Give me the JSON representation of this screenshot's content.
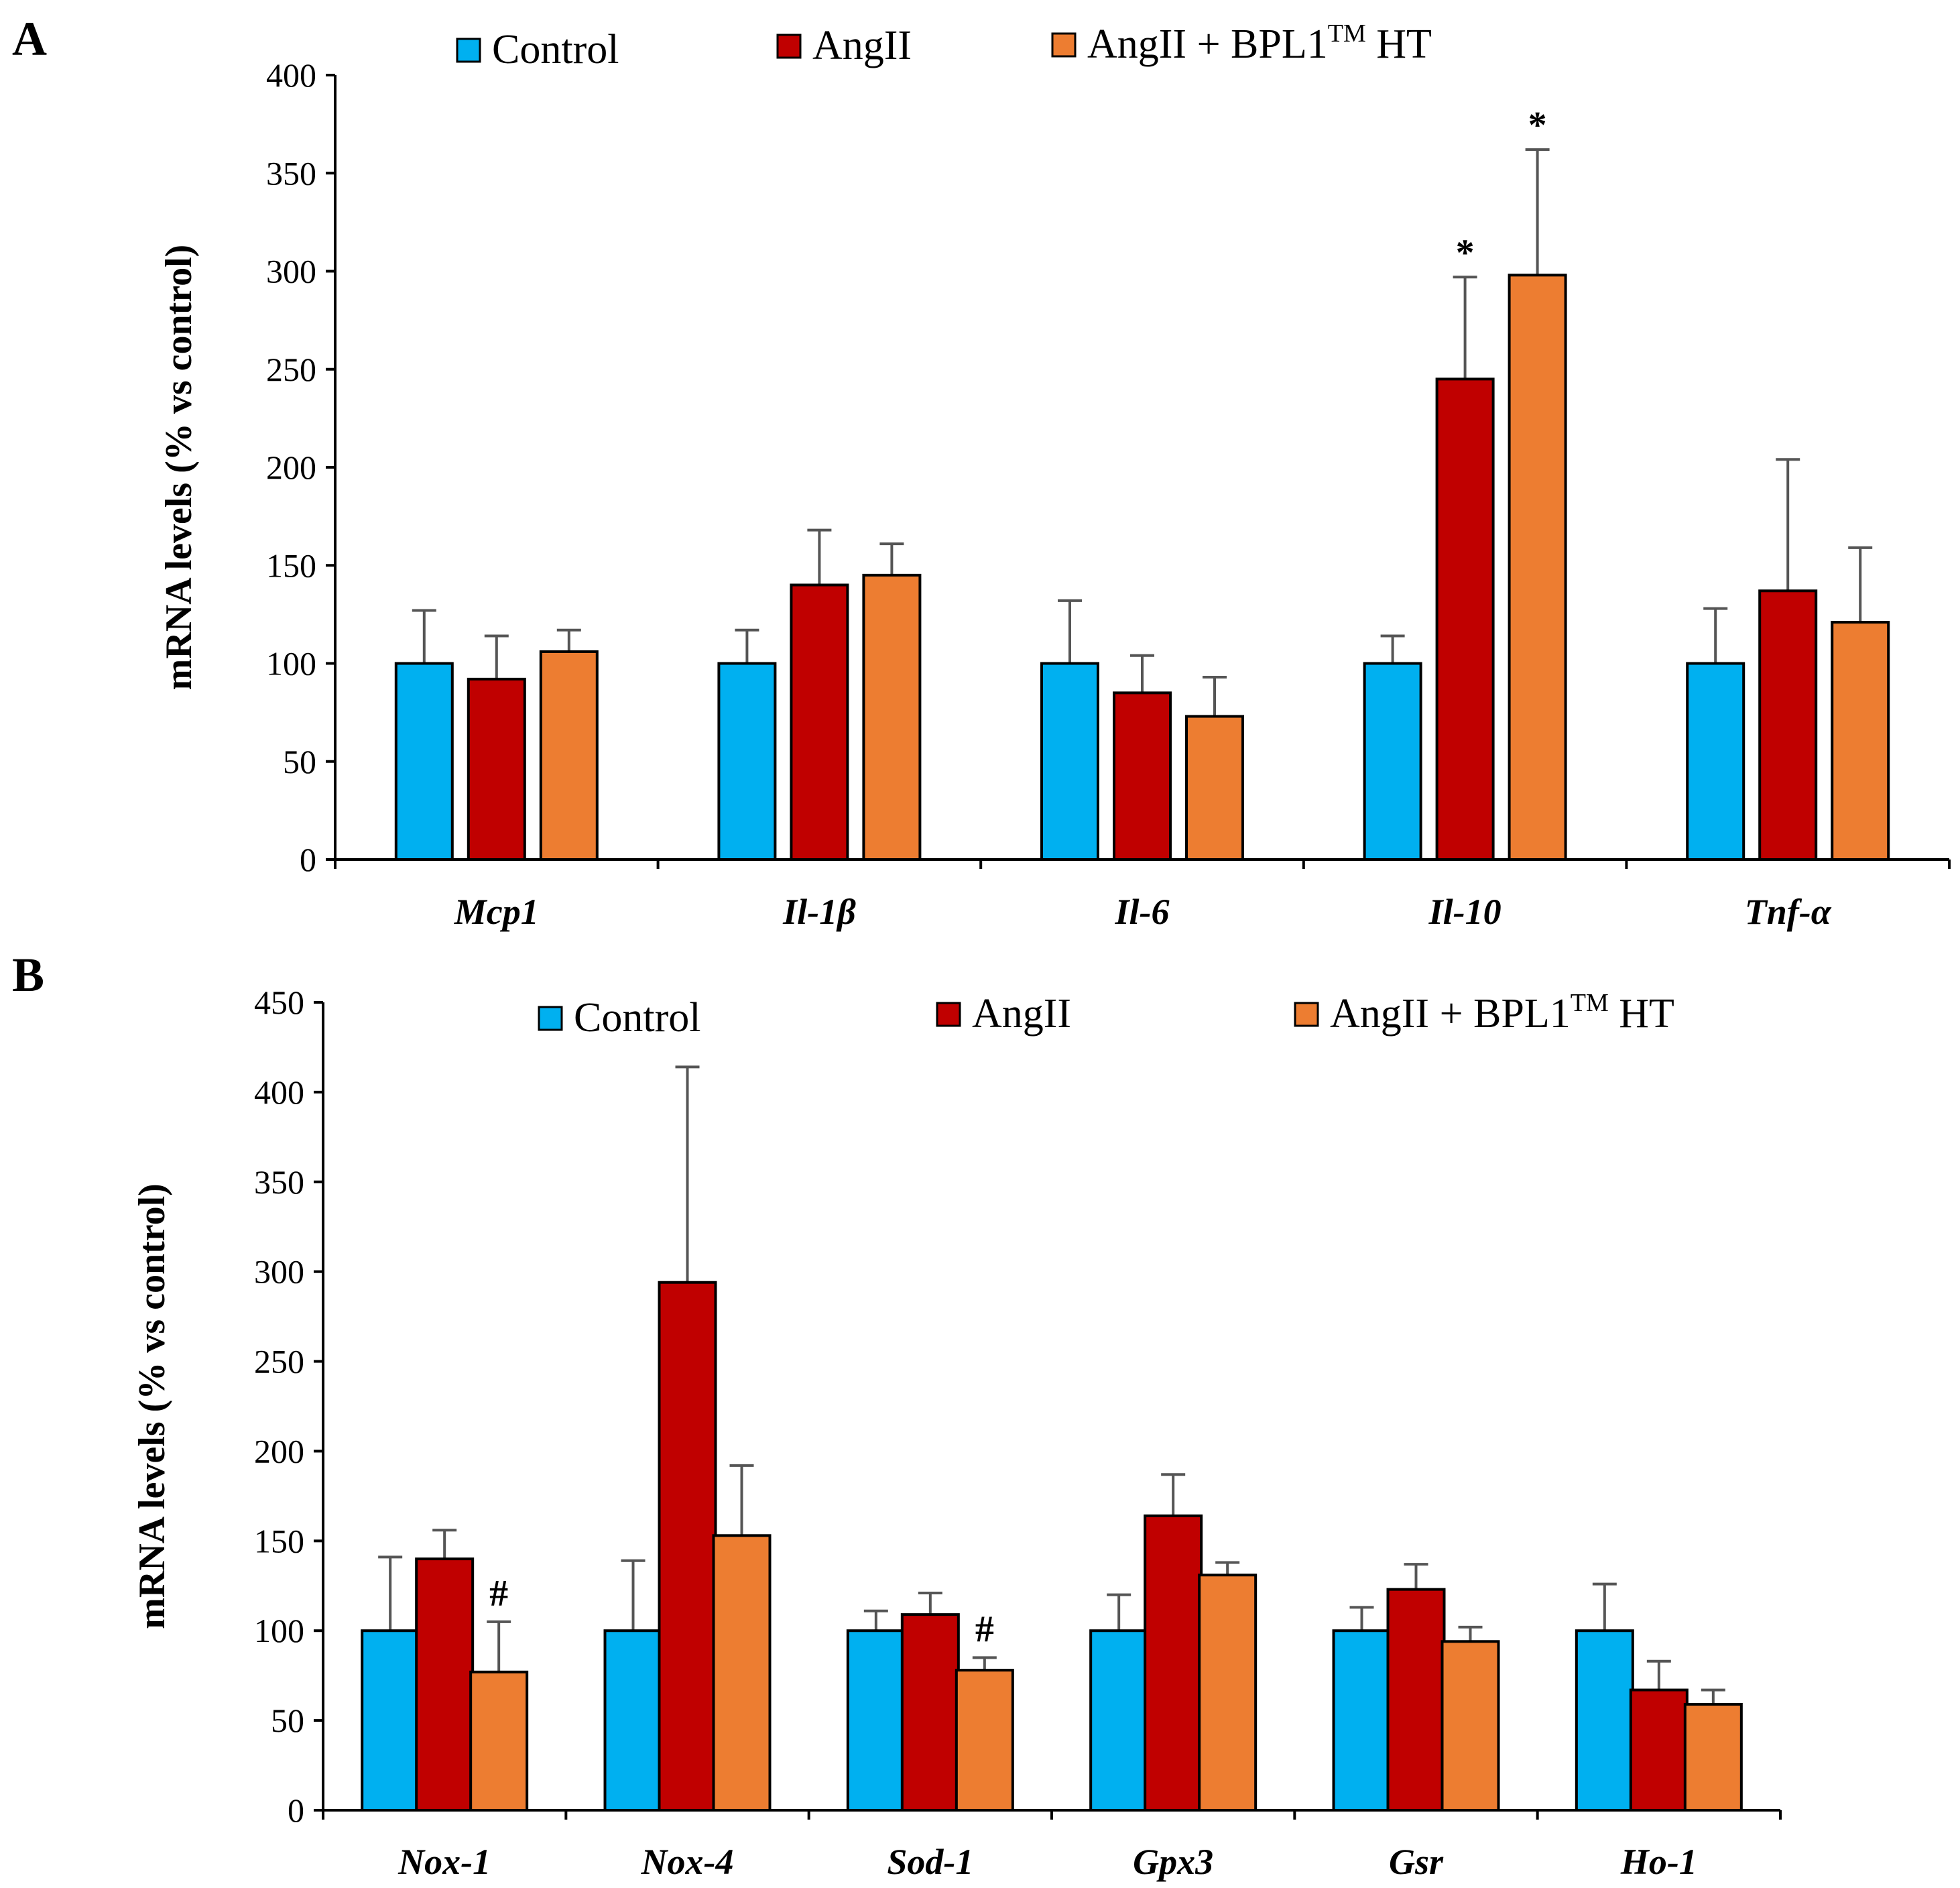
{
  "figure": {
    "panels": [
      "A",
      "B"
    ]
  },
  "legend": {
    "entries": [
      {
        "name": "Control",
        "color": "#00B0F0"
      },
      {
        "name": "AngII",
        "color": "#C00000"
      },
      {
        "name": "AngII + BPL1",
        "sup": "TM",
        "suffix": " HT",
        "color": "#ED7D31"
      }
    ]
  },
  "chart_data": [
    {
      "panel": "A",
      "type": "bar",
      "title": "",
      "ylabel": "mRNA levels (% vs control)",
      "xlabel": "",
      "ylim": [
        0,
        400
      ],
      "yticks": [
        0,
        50,
        100,
        150,
        200,
        250,
        300,
        350,
        400
      ],
      "categories": [
        "Mcp1",
        "Il-1β",
        "Il-6",
        "Il-10",
        "Tnf-α"
      ],
      "series": [
        {
          "name": "Control",
          "values": [
            100,
            100,
            100,
            100,
            100
          ],
          "errors": [
            27,
            17,
            32,
            14,
            28
          ]
        },
        {
          "name": "AngII",
          "values": [
            92,
            140,
            85,
            245,
            137
          ],
          "errors": [
            22,
            28,
            19,
            52,
            67
          ]
        },
        {
          "name": "AngII + BPL1TM HT",
          "values": [
            106,
            145,
            73,
            298,
            121
          ],
          "errors": [
            11,
            16,
            20,
            64,
            38
          ]
        }
      ],
      "annotations": [
        {
          "category": "Il-10",
          "series": "AngII",
          "text": "*"
        },
        {
          "category": "Il-10",
          "series": "AngII + BPL1TM HT",
          "text": "*"
        }
      ]
    },
    {
      "panel": "B",
      "type": "bar",
      "title": "",
      "ylabel": "mRNA levels (% vs control)",
      "xlabel": "",
      "ylim": [
        0,
        450
      ],
      "yticks": [
        0,
        50,
        100,
        150,
        200,
        250,
        300,
        350,
        400,
        450
      ],
      "categories": [
        "Nox-1",
        "Nox-4",
        "Sod-1",
        "Gpx3",
        "Gsr",
        "Ho-1"
      ],
      "series": [
        {
          "name": "Control",
          "values": [
            100,
            100,
            100,
            100,
            100,
            100
          ],
          "errors": [
            41,
            39,
            11,
            20,
            13,
            26
          ]
        },
        {
          "name": "AngII",
          "values": [
            140,
            294,
            109,
            164,
            123,
            67
          ],
          "errors": [
            16,
            120,
            12,
            23,
            14,
            16
          ]
        },
        {
          "name": "AngII + BPL1TM HT",
          "values": [
            77,
            153,
            78,
            131,
            94,
            59
          ],
          "errors": [
            28,
            39,
            7,
            7,
            8,
            8
          ]
        }
      ],
      "annotations": [
        {
          "category": "Nox-1",
          "series": "AngII + BPL1TM HT",
          "text": "#"
        },
        {
          "category": "Sod-1",
          "series": "AngII + BPL1TM HT",
          "text": "#"
        }
      ]
    }
  ]
}
